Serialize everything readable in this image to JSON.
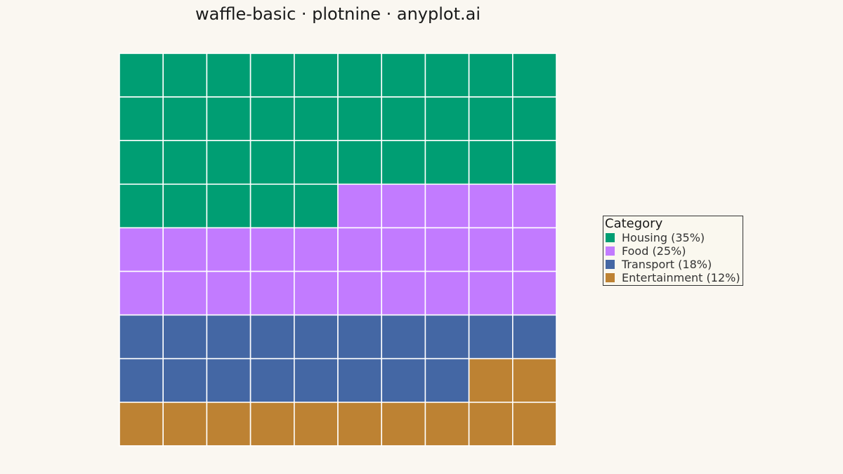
{
  "chart_data": {
    "type": "waffle",
    "title": "waffle-basic · plotnine · anyplot.ai",
    "grid": {
      "rows": 9,
      "cols": 10
    },
    "categories": [
      "Housing (35%)",
      "Food (25%)",
      "Transport (18%)",
      "Entertainment (12%)"
    ],
    "values": [
      35,
      25,
      18,
      12
    ],
    "colors": [
      "#009E73",
      "#C27BFF",
      "#4467A4",
      "#BD8233"
    ],
    "legend": {
      "title": "Category",
      "position": "right"
    }
  }
}
